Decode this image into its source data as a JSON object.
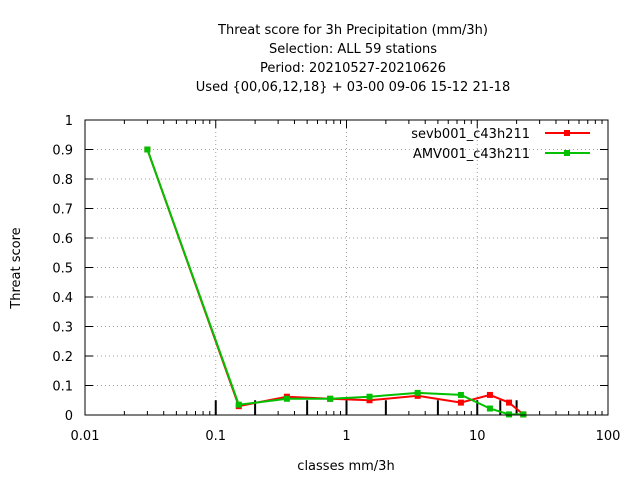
{
  "chart_data": {
    "type": "line",
    "title_lines": [
      "Threat score  for 3h Precipitation (mm/3h)",
      "Selection: ALL      59 stations",
      "Period: 20210527-20210626",
      "Used {00,06,12,18} + 03-00 09-06 15-12 21-18"
    ],
    "xlabel": "classes mm/3h",
    "ylabel": "Threat score",
    "x_scale": "log",
    "xlim": [
      0.01,
      100
    ],
    "ylim": [
      0,
      1
    ],
    "grid": true,
    "legend_position": "top-right",
    "x_ticks": [
      {
        "value": 0.01,
        "label": "0.01"
      },
      {
        "value": 0.1,
        "label": "0.1"
      },
      {
        "value": 1,
        "label": "1"
      },
      {
        "value": 10,
        "label": "10"
      },
      {
        "value": 100,
        "label": "100"
      }
    ],
    "y_ticks": [
      {
        "value": 0,
        "label": "0"
      },
      {
        "value": 0.1,
        "label": "0.1"
      },
      {
        "value": 0.2,
        "label": "0.2"
      },
      {
        "value": 0.3,
        "label": "0.3"
      },
      {
        "value": 0.4,
        "label": "0.4"
      },
      {
        "value": 0.5,
        "label": "0.5"
      },
      {
        "value": 0.6,
        "label": "0.6"
      },
      {
        "value": 0.7,
        "label": "0.7"
      },
      {
        "value": 0.8,
        "label": "0.8"
      },
      {
        "value": 0.9,
        "label": "0.9"
      },
      {
        "value": 1,
        "label": "1"
      }
    ],
    "class_bars": [
      {
        "x": 0.1,
        "y": 0.05
      },
      {
        "x": 0.2,
        "y": 0.05
      },
      {
        "x": 0.5,
        "y": 0.05
      },
      {
        "x": 1,
        "y": 0.05
      },
      {
        "x": 2,
        "y": 0.05
      },
      {
        "x": 5,
        "y": 0.05
      },
      {
        "x": 10,
        "y": 0.05
      },
      {
        "x": 15,
        "y": 0.05
      },
      {
        "x": 20,
        "y": 0.05
      }
    ],
    "series": [
      {
        "name": "sevb001_c43h211",
        "color": "#ff0000",
        "x": [
          0.03,
          0.15,
          0.35,
          0.75,
          1.5,
          3.5,
          7.5,
          12.5,
          17.5,
          22.5
        ],
        "y": [
          0.9,
          0.03,
          0.062,
          0.055,
          0.05,
          0.065,
          0.042,
          0.068,
          0.042,
          0.002
        ]
      },
      {
        "name": "AMV001_c43h211",
        "color": "#00c000",
        "x": [
          0.03,
          0.15,
          0.35,
          0.75,
          1.5,
          3.5,
          7.5,
          12.5,
          17.5,
          22.5
        ],
        "y": [
          0.9,
          0.035,
          0.055,
          0.055,
          0.062,
          0.075,
          0.068,
          0.022,
          0.002,
          0.002
        ]
      }
    ]
  }
}
